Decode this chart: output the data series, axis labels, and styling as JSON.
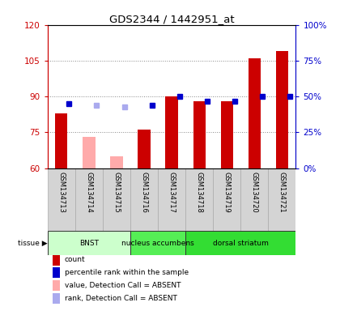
{
  "title": "GDS2344 / 1442951_at",
  "samples": [
    "GSM134713",
    "GSM134714",
    "GSM134715",
    "GSM134716",
    "GSM134717",
    "GSM134718",
    "GSM134719",
    "GSM134720",
    "GSM134721"
  ],
  "count_values": [
    83,
    null,
    null,
    76,
    90,
    88,
    88,
    106,
    109
  ],
  "count_absent_values": [
    null,
    73,
    65,
    null,
    null,
    null,
    null,
    null,
    null
  ],
  "rank_pct_values": [
    45,
    null,
    null,
    44,
    50,
    47,
    47,
    50,
    50
  ],
  "rank_pct_absent": [
    null,
    44,
    43,
    null,
    null,
    null,
    null,
    null,
    null
  ],
  "ylim_left": [
    60,
    120
  ],
  "ylim_right": [
    0,
    100
  ],
  "yticks_left": [
    60,
    75,
    90,
    105,
    120
  ],
  "yticks_right": [
    0,
    25,
    50,
    75,
    100
  ],
  "ytick_labels_left": [
    "60",
    "75",
    "90",
    "105",
    "120"
  ],
  "ytick_labels_right": [
    "0%",
    "25%",
    "50%",
    "75%",
    "100%"
  ],
  "tissues": [
    {
      "label": "BNST",
      "start": 0,
      "end": 3,
      "color": "#ccffcc"
    },
    {
      "label": "nucleus accumbens",
      "start": 3,
      "end": 5,
      "color": "#55ee55"
    },
    {
      "label": "dorsal striatum",
      "start": 5,
      "end": 9,
      "color": "#33dd33"
    }
  ],
  "count_color": "#cc0000",
  "count_absent_color": "#ffaaaa",
  "rank_color": "#0000cc",
  "rank_absent_color": "#aaaaee",
  "bg_color": "#ffffff",
  "grid_color": "#888888",
  "left_axis_color": "#cc0000",
  "right_axis_color": "#0000cc",
  "legend_items": [
    {
      "color": "#cc0000",
      "label": "count"
    },
    {
      "color": "#0000cc",
      "label": "percentile rank within the sample"
    },
    {
      "color": "#ffaaaa",
      "label": "value, Detection Call = ABSENT"
    },
    {
      "color": "#aaaaee",
      "label": "rank, Detection Call = ABSENT"
    }
  ]
}
